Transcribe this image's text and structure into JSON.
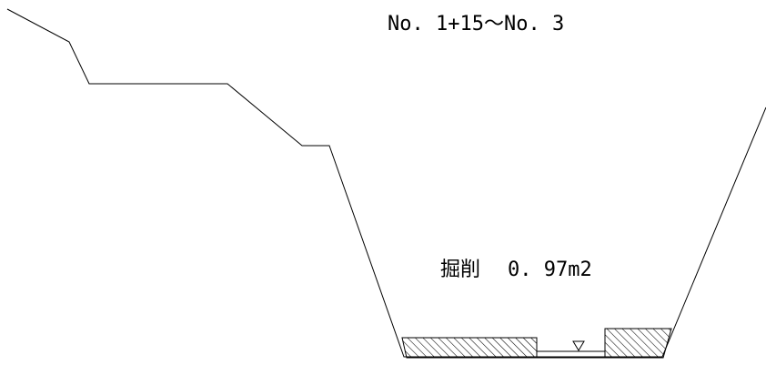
{
  "section": {
    "range_label": "No. 1+15～No. 3"
  },
  "excavation": {
    "label": "掘削",
    "value": "0. 97m2"
  },
  "colors": {
    "line": "#000000",
    "hatch": "#000000",
    "background": "#ffffff"
  },
  "icons": {
    "water_level": "triangle-down-icon"
  }
}
